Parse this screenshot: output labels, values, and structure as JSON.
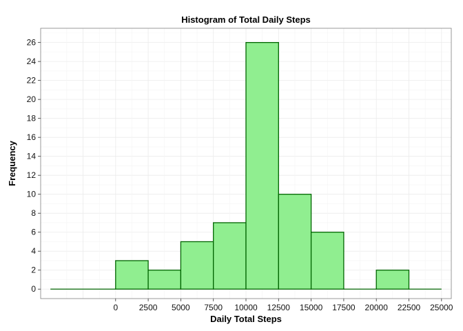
{
  "chart_data": {
    "type": "bar",
    "title": "Histogram of Total Daily Steps",
    "xlabel": "Daily Total Steps",
    "ylabel": "Frequency",
    "bin_width": 2500,
    "bins": [
      {
        "start": -5000,
        "end": -2500,
        "count": 0
      },
      {
        "start": -2500,
        "end": 0,
        "count": 0
      },
      {
        "start": 0,
        "end": 2500,
        "count": 3
      },
      {
        "start": 2500,
        "end": 5000,
        "count": 2
      },
      {
        "start": 5000,
        "end": 7500,
        "count": 5
      },
      {
        "start": 7500,
        "end": 10000,
        "count": 7
      },
      {
        "start": 10000,
        "end": 12500,
        "count": 26
      },
      {
        "start": 12500,
        "end": 15000,
        "count": 10
      },
      {
        "start": 15000,
        "end": 17500,
        "count": 6
      },
      {
        "start": 17500,
        "end": 20000,
        "count": 0
      },
      {
        "start": 20000,
        "end": 22500,
        "count": 2
      },
      {
        "start": 22500,
        "end": 25000,
        "count": 0
      }
    ],
    "x_ticks": [
      "0",
      "2500",
      "5000",
      "7500",
      "10000",
      "12500",
      "15000",
      "17500",
      "20000",
      "22500",
      "25000"
    ],
    "y_ticks": [
      "0",
      "2",
      "4",
      "6",
      "8",
      "10",
      "12",
      "14",
      "16",
      "18",
      "20",
      "22",
      "24",
      "26"
    ],
    "xlim": [
      -5750,
      25750
    ],
    "ylim": [
      -1,
      27.5
    ],
    "grid": true,
    "colors": {
      "bar_fill": "#90EE90",
      "bar_stroke": "#006400",
      "grid": "#EBEBEB",
      "panel_border": "#7F7F7F"
    }
  }
}
